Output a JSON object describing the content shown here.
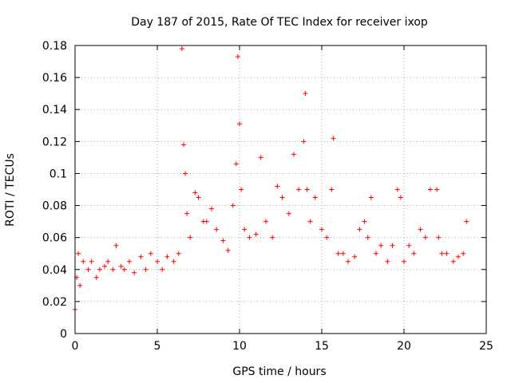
{
  "chart_data": {
    "type": "scatter",
    "title": "Day 187 of 2015, Rate Of TEC Index for receiver ixop",
    "xlabel": "GPS time / hours",
    "ylabel": "ROTI / TECUs",
    "xlim": [
      0,
      25
    ],
    "ylim": [
      0,
      0.18
    ],
    "xticks": [
      0,
      5,
      10,
      15,
      20,
      25
    ],
    "yticks": [
      0,
      0.02,
      0.04,
      0.06,
      0.08,
      0.1,
      0.12,
      0.14,
      0.16,
      0.18
    ],
    "ytick_labels": [
      "0",
      "0.02",
      "0.04",
      "0.06",
      "0.08",
      "0.1",
      "0.12",
      "0.14",
      "0.16",
      "0.18"
    ],
    "grid": true,
    "marker": "+",
    "color": "#ff0000",
    "series": [
      {
        "x": [
          0.0,
          0.1,
          0.2,
          0.3,
          0.5,
          0.8,
          1.0,
          1.3,
          1.5,
          1.8,
          2.0,
          2.3,
          2.5,
          2.8,
          3.0,
          3.3,
          3.6,
          4.0,
          4.3,
          4.6,
          5.0,
          5.3,
          5.6,
          6.0,
          6.3,
          6.5,
          6.6,
          6.7,
          6.8,
          7.0,
          7.3,
          7.5,
          7.8,
          8.0,
          8.3,
          8.6,
          9.0,
          9.3,
          9.6,
          9.8,
          9.9,
          10.0,
          10.1,
          10.3,
          10.6,
          11.0,
          11.3,
          11.6,
          12.0,
          12.3,
          12.6,
          13.0,
          13.3,
          13.6,
          13.9,
          14.0,
          14.1,
          14.3,
          14.6,
          15.0,
          15.3,
          15.6,
          15.7,
          16.0,
          16.3,
          16.6,
          17.0,
          17.3,
          17.6,
          17.8,
          18.0,
          18.3,
          18.6,
          19.0,
          19.3,
          19.6,
          19.8,
          20.0,
          20.3,
          20.6,
          21.0,
          21.3,
          21.6,
          22.0,
          22.1,
          22.3,
          22.6,
          23.0,
          23.3,
          23.6,
          23.8
        ],
        "y": [
          0.015,
          0.035,
          0.05,
          0.03,
          0.045,
          0.04,
          0.045,
          0.035,
          0.04,
          0.042,
          0.045,
          0.04,
          0.055,
          0.042,
          0.04,
          0.045,
          0.038,
          0.048,
          0.04,
          0.05,
          0.045,
          0.04,
          0.048,
          0.045,
          0.05,
          0.178,
          0.118,
          0.1,
          0.075,
          0.06,
          0.088,
          0.085,
          0.07,
          0.07,
          0.078,
          0.065,
          0.058,
          0.052,
          0.08,
          0.106,
          0.173,
          0.131,
          0.09,
          0.065,
          0.06,
          0.062,
          0.11,
          0.07,
          0.06,
          0.092,
          0.085,
          0.075,
          0.112,
          0.09,
          0.12,
          0.15,
          0.09,
          0.07,
          0.085,
          0.065,
          0.06,
          0.09,
          0.122,
          0.05,
          0.05,
          0.045,
          0.048,
          0.065,
          0.07,
          0.06,
          0.085,
          0.05,
          0.055,
          0.045,
          0.055,
          0.09,
          0.085,
          0.045,
          0.055,
          0.05,
          0.065,
          0.06,
          0.09,
          0.09,
          0.06,
          0.05,
          0.05,
          0.045,
          0.048,
          0.05,
          0.07
        ]
      }
    ]
  }
}
